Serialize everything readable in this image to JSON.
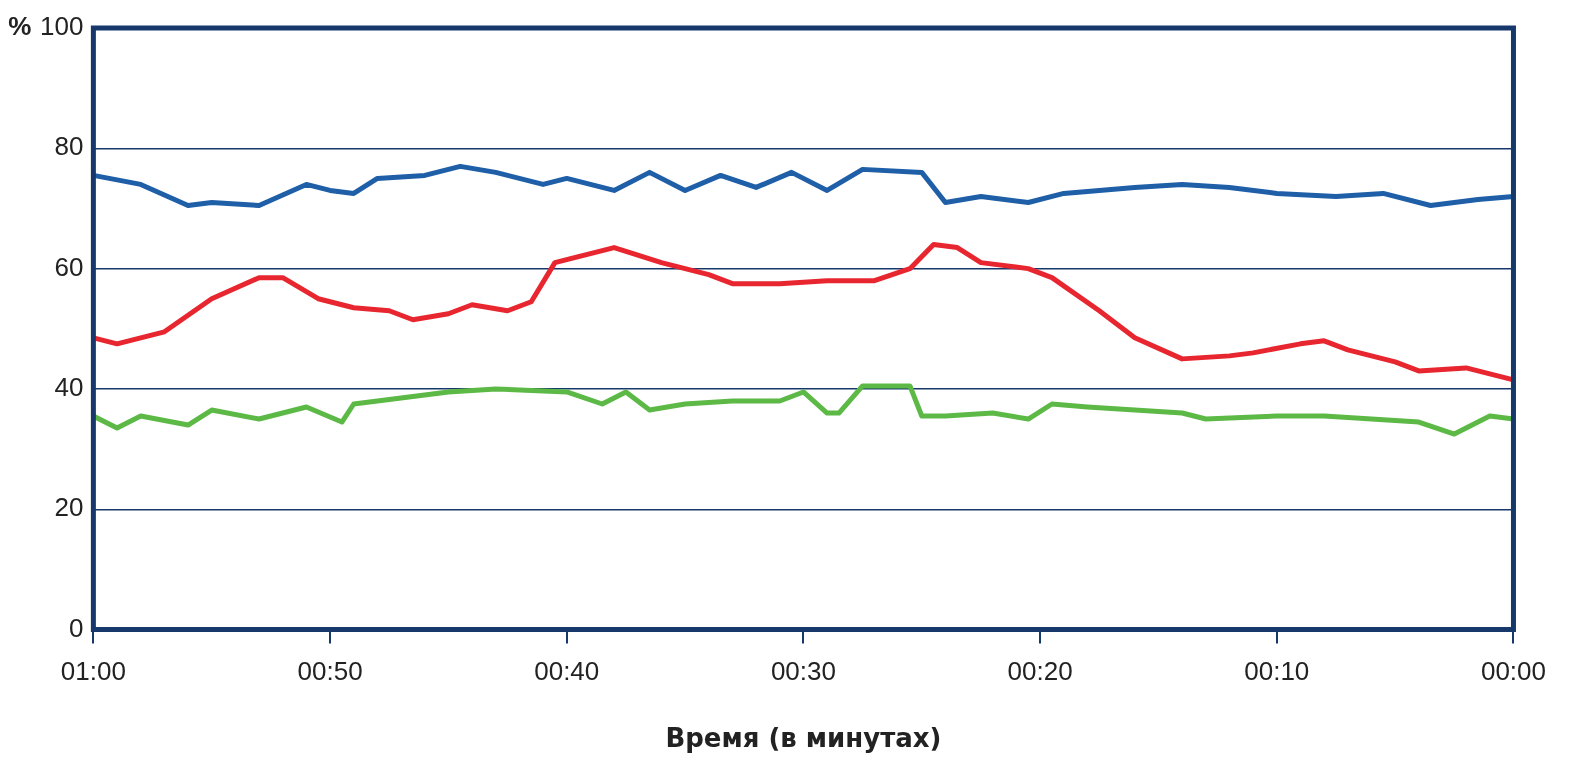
{
  "chart_data": {
    "type": "line",
    "xlabel": "Время (в минутах)",
    "ylabel": "%",
    "xlim": [
      60,
      0
    ],
    "xticks": [
      {
        "value": 60,
        "label": "01:00"
      },
      {
        "value": 50,
        "label": "00:50"
      },
      {
        "value": 40,
        "label": "00:40"
      },
      {
        "value": 30,
        "label": "00:30"
      },
      {
        "value": 20,
        "label": "00:20"
      },
      {
        "value": 10,
        "label": "00:10"
      },
      {
        "value": 0,
        "label": "00:00"
      }
    ],
    "ylim": [
      0,
      100
    ],
    "yticks": [
      0,
      20,
      40,
      60,
      80,
      100
    ],
    "grid": "y",
    "legend": false,
    "marker": "none",
    "line_style": "solid",
    "series": [
      {
        "color": "#1f5fa8",
        "x": [
          60,
          58,
          56,
          55,
          53,
          51,
          50,
          49,
          48,
          46,
          44.5,
          43,
          41,
          40,
          38,
          36.5,
          35,
          33.5,
          32,
          30.5,
          29,
          27.5,
          25,
          24,
          22.5,
          20.5,
          19,
          16,
          14,
          12,
          10,
          7.5,
          5.5,
          3.5,
          1.5,
          0
        ],
        "values": [
          75.5,
          74,
          70.5,
          71,
          70.5,
          74,
          73,
          72.5,
          75,
          75.5,
          77,
          76,
          74,
          75,
          73,
          76,
          73,
          75.5,
          73.5,
          76,
          73,
          76.5,
          76,
          71,
          72,
          71,
          72.5,
          73.5,
          74,
          73.5,
          72.5,
          72,
          72.5,
          70.5,
          71.5,
          72
        ]
      },
      {
        "color": "#e8262f",
        "x": [
          60,
          59,
          57,
          55,
          53,
          52,
          50.5,
          49,
          47.5,
          46.5,
          45,
          44,
          42.5,
          41.5,
          40.5,
          39,
          38,
          36,
          34,
          33,
          31,
          29,
          27,
          25.5,
          24.5,
          23.5,
          22.5,
          20.5,
          19.5,
          17.5,
          16,
          14,
          12,
          11,
          9,
          8,
          7,
          5,
          4,
          2,
          0.5,
          0
        ],
        "values": [
          48.5,
          47.5,
          49.5,
          55,
          58.5,
          58.5,
          55,
          53.5,
          53,
          51.5,
          52.5,
          54,
          53,
          54.5,
          61,
          62.5,
          63.5,
          61,
          59,
          57.5,
          57.5,
          58,
          58,
          60,
          64,
          63.5,
          61,
          60,
          58.5,
          53,
          48.5,
          45,
          45.5,
          46,
          47.5,
          48,
          46.5,
          44.5,
          43,
          43.5,
          42,
          41.5
        ]
      },
      {
        "color": "#5cb946",
        "x": [
          60,
          59,
          58,
          56,
          55,
          53,
          51,
          49.5,
          49,
          47,
          45,
          43,
          40,
          38.5,
          37.5,
          36.5,
          35,
          33,
          31,
          30,
          29,
          28.5,
          27.5,
          25.5,
          25,
          24,
          22,
          20.5,
          19.5,
          18,
          16,
          14,
          13,
          10,
          8,
          6,
          4,
          2.5,
          1,
          0
        ],
        "values": [
          35.5,
          33.5,
          35.5,
          34,
          36.5,
          35,
          37,
          34.5,
          37.5,
          38.5,
          39.5,
          40,
          39.5,
          37.5,
          39.5,
          36.5,
          37.5,
          38,
          38,
          39.5,
          36,
          36,
          40.5,
          40.5,
          35.5,
          35.5,
          36,
          35,
          37.5,
          37,
          36.5,
          36,
          35,
          35.5,
          35.5,
          35,
          34.5,
          32.5,
          35.5,
          35
        ]
      }
    ]
  }
}
